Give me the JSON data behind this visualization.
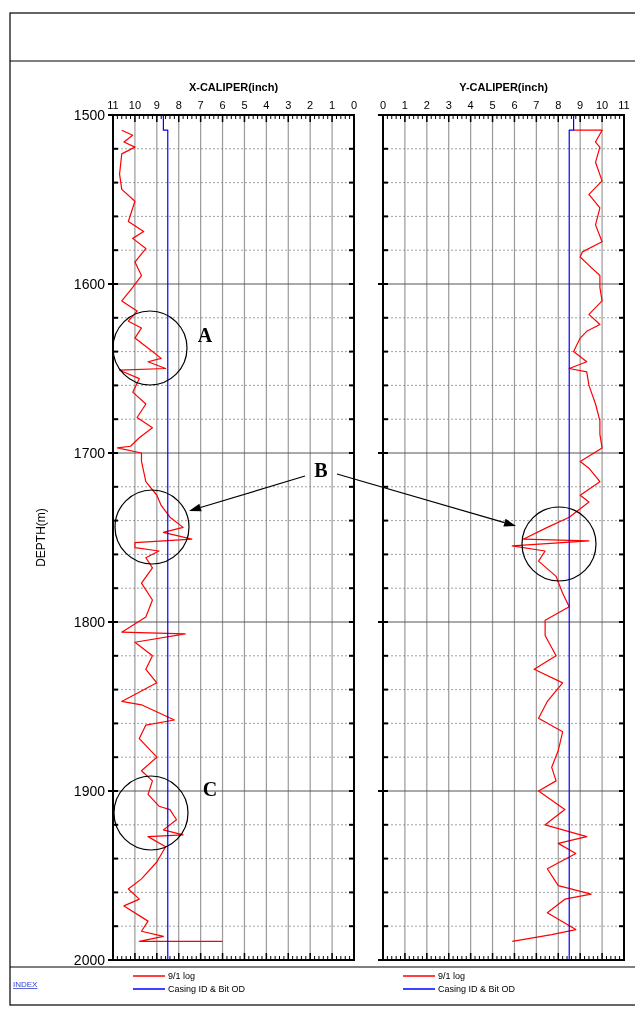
{
  "chart_data": [
    {
      "type": "line",
      "xlabel": "X-CALIPER(inch)",
      "ylabel": "DEPTH(m)",
      "xlim": [
        11,
        0
      ],
      "xticks": [
        11,
        10,
        9,
        8,
        7,
        6,
        5,
        4,
        3,
        2,
        1,
        0
      ],
      "ylim": [
        2000,
        1500
      ],
      "yticks": [
        1500,
        {
          "value": 1520,
          "label": null
        },
        {
          "value": 1540,
          "label": null
        },
        {
          "value": 1560,
          "label": null
        },
        {
          "value": 1580,
          "label": null
        },
        1600,
        {
          "value": 1620,
          "label": null
        },
        {
          "value": 1640,
          "label": null
        },
        {
          "value": 1660,
          "label": null
        },
        {
          "value": 1680,
          "label": null
        },
        1700,
        {
          "value": 1720,
          "label": null
        },
        {
          "value": 1740,
          "label": null
        },
        {
          "value": 1760,
          "label": null
        },
        {
          "value": 1780,
          "label": null
        },
        1800,
        {
          "value": 1820,
          "label": null
        },
        {
          "value": 1840,
          "label": null
        },
        {
          "value": 1860,
          "label": null
        },
        {
          "value": 1880,
          "label": null
        },
        1900,
        {
          "value": 1920,
          "label": null
        },
        {
          "value": 1940,
          "label": null
        },
        {
          "value": 1960,
          "label": null
        },
        {
          "value": 1980,
          "label": null
        },
        2000
      ],
      "grid": true,
      "legend": "bottom",
      "line_style": "solid",
      "marker": "none",
      "annotations": [
        "A",
        "B",
        "C",
        "INDEX"
      ],
      "series": [
        {
          "name": "9/1 log",
          "color": "#ff0000",
          "x": [
            10.6,
            10.1,
            10.5,
            10.0,
            10.6,
            10.7,
            10.6,
            10.0,
            10.3,
            9.6,
            10.1,
            9.5,
            10.0,
            9.7,
            10.1,
            10.6,
            9.9,
            10.3,
            9.7,
            10.0,
            9.2,
            8.8,
            9.4,
            8.6,
            10.7,
            9.8,
            10.1,
            9.5,
            9.9,
            9.2,
            9.8,
            10.2,
            10.8,
            9.7,
            9.7,
            9.5,
            9.0,
            8.8,
            8.4,
            7.8,
            8.7,
            7.4,
            10.0,
            10.0,
            8.9,
            9.5,
            9.2,
            9.7,
            9.2,
            9.5,
            10.6,
            7.7,
            10.0,
            9.2,
            9.5,
            9.0,
            10.6,
            9.7,
            8.2,
            9.5,
            9.8,
            9.0,
            9.7,
            9.2,
            9.4,
            8.9,
            8.4,
            8.1,
            8.7,
            7.8,
            9.4,
            8.6,
            9.0,
            9.7,
            10.3,
            9.8,
            10.5,
            9.4,
            9.7,
            8.7,
            9.8,
            6.0
          ],
          "values": [
            1509,
            1512,
            1516,
            1519,
            1523,
            1535,
            1544,
            1551,
            1563,
            1569,
            1573,
            1579,
            1587,
            1595,
            1602,
            1610,
            1616,
            1622,
            1626,
            1632,
            1640,
            1644,
            1646,
            1650,
            1651,
            1656,
            1664,
            1671,
            1679,
            1685,
            1691,
            1696,
            1697,
            1700,
            1705,
            1717,
            1725,
            1731,
            1738,
            1744,
            1747,
            1751,
            1753,
            1756,
            1758,
            1762,
            1768,
            1777,
            1787,
            1797,
            1806,
            1807,
            1812,
            1820,
            1828,
            1836,
            1847,
            1849,
            1858,
            1861,
            1869,
            1880,
            1888,
            1894,
            1902,
            1909,
            1911,
            1917,
            1923,
            1926,
            1927,
            1933,
            1942,
            1952,
            1958,
            1964,
            1968,
            1977,
            1983,
            1986,
            1989,
            1989
          ]
        },
        {
          "name": "Casing ID & Bit OD",
          "color": "#0000ff",
          "x": [
            8.7,
            8.7,
            8.5,
            8.5
          ],
          "values": [
            1500,
            1509,
            1509,
            2000
          ]
        }
      ]
    },
    {
      "type": "line",
      "xlabel": "Y-CALIPER(inch)",
      "xlim": [
        0,
        11
      ],
      "xticks": [
        0,
        1,
        2,
        3,
        4,
        5,
        6,
        7,
        8,
        9,
        10,
        11
      ],
      "ylim": [
        2000,
        1500
      ],
      "yticks": [
        1500,
        {
          "value": 1520,
          "label": null
        },
        {
          "value": 1540,
          "label": null
        },
        {
          "value": 1560,
          "label": null
        },
        {
          "value": 1580,
          "label": null
        },
        1600,
        {
          "value": 1620,
          "label": null
        },
        {
          "value": 1640,
          "label": null
        },
        {
          "value": 1660,
          "label": null
        },
        {
          "value": 1680,
          "label": null
        },
        1700,
        {
          "value": 1720,
          "label": null
        },
        {
          "value": 1740,
          "label": null
        },
        {
          "value": 1760,
          "label": null
        },
        {
          "value": 1780,
          "label": null
        },
        1800,
        {
          "value": 1820,
          "label": null
        },
        {
          "value": 1840,
          "label": null
        },
        {
          "value": 1860,
          "label": null
        },
        {
          "value": 1880,
          "label": null
        },
        1900,
        {
          "value": 1920,
          "label": null
        },
        {
          "value": 1940,
          "label": null
        },
        {
          "value": 1960,
          "label": null
        },
        {
          "value": 1980,
          "label": null
        },
        2000
      ],
      "tick_labels": "x",
      "grid": true,
      "legend": "bottom",
      "line_style": "solid",
      "marker": "none",
      "series": [
        {
          "name": "9/1 log",
          "color": "#ff0000",
          "x": [
            8.7,
            10.0,
            9.7,
            9.9,
            9.7,
            10.0,
            9.4,
            9.9,
            9.7,
            10.0,
            9.1,
            9.0,
            9.4,
            9.9,
            9.9,
            10.0,
            9.4,
            9.9,
            9.3,
            9.0,
            8.7,
            9.3,
            8.5,
            9.3,
            9.4,
            9.7,
            9.9,
            9.9,
            10.0,
            9.0,
            9.4,
            9.9,
            9.0,
            9.4,
            8.5,
            7.5,
            6.4,
            9.4,
            5.9,
            7.4,
            7.1,
            7.9,
            8.2,
            8.5,
            7.4,
            7.4,
            7.9,
            6.9,
            8.2,
            7.5,
            7.1,
            8.2,
            8.0,
            7.7,
            7.9,
            7.1,
            8.3,
            7.4,
            9.3,
            8.0,
            8.8,
            7.5,
            8.0,
            9.5,
            8.3,
            7.5,
            8.8,
            7.7,
            5.9
          ],
          "values": [
            1509,
            1509,
            1516,
            1519,
            1528,
            1539,
            1547,
            1555,
            1565,
            1575,
            1581,
            1584,
            1589,
            1595,
            1602,
            1610,
            1618,
            1624,
            1628,
            1632,
            1640,
            1646,
            1650,
            1652,
            1660,
            1671,
            1681,
            1689,
            1697,
            1705,
            1709,
            1717,
            1725,
            1729,
            1738,
            1744,
            1751,
            1752,
            1755,
            1758,
            1764,
            1773,
            1783,
            1791,
            1799,
            1808,
            1820,
            1828,
            1836,
            1847,
            1857,
            1865,
            1876,
            1886,
            1894,
            1900,
            1911,
            1920,
            1927,
            1931,
            1937,
            1946,
            1956,
            1961,
            1964,
            1972,
            1982,
            1985,
            1989
          ]
        },
        {
          "name": "Casing ID & Bit OD",
          "color": "#0000ff",
          "x": [
            8.7,
            8.7,
            8.5,
            8.5
          ],
          "values": [
            1500,
            1509,
            1509,
            2000
          ]
        }
      ]
    }
  ]
}
